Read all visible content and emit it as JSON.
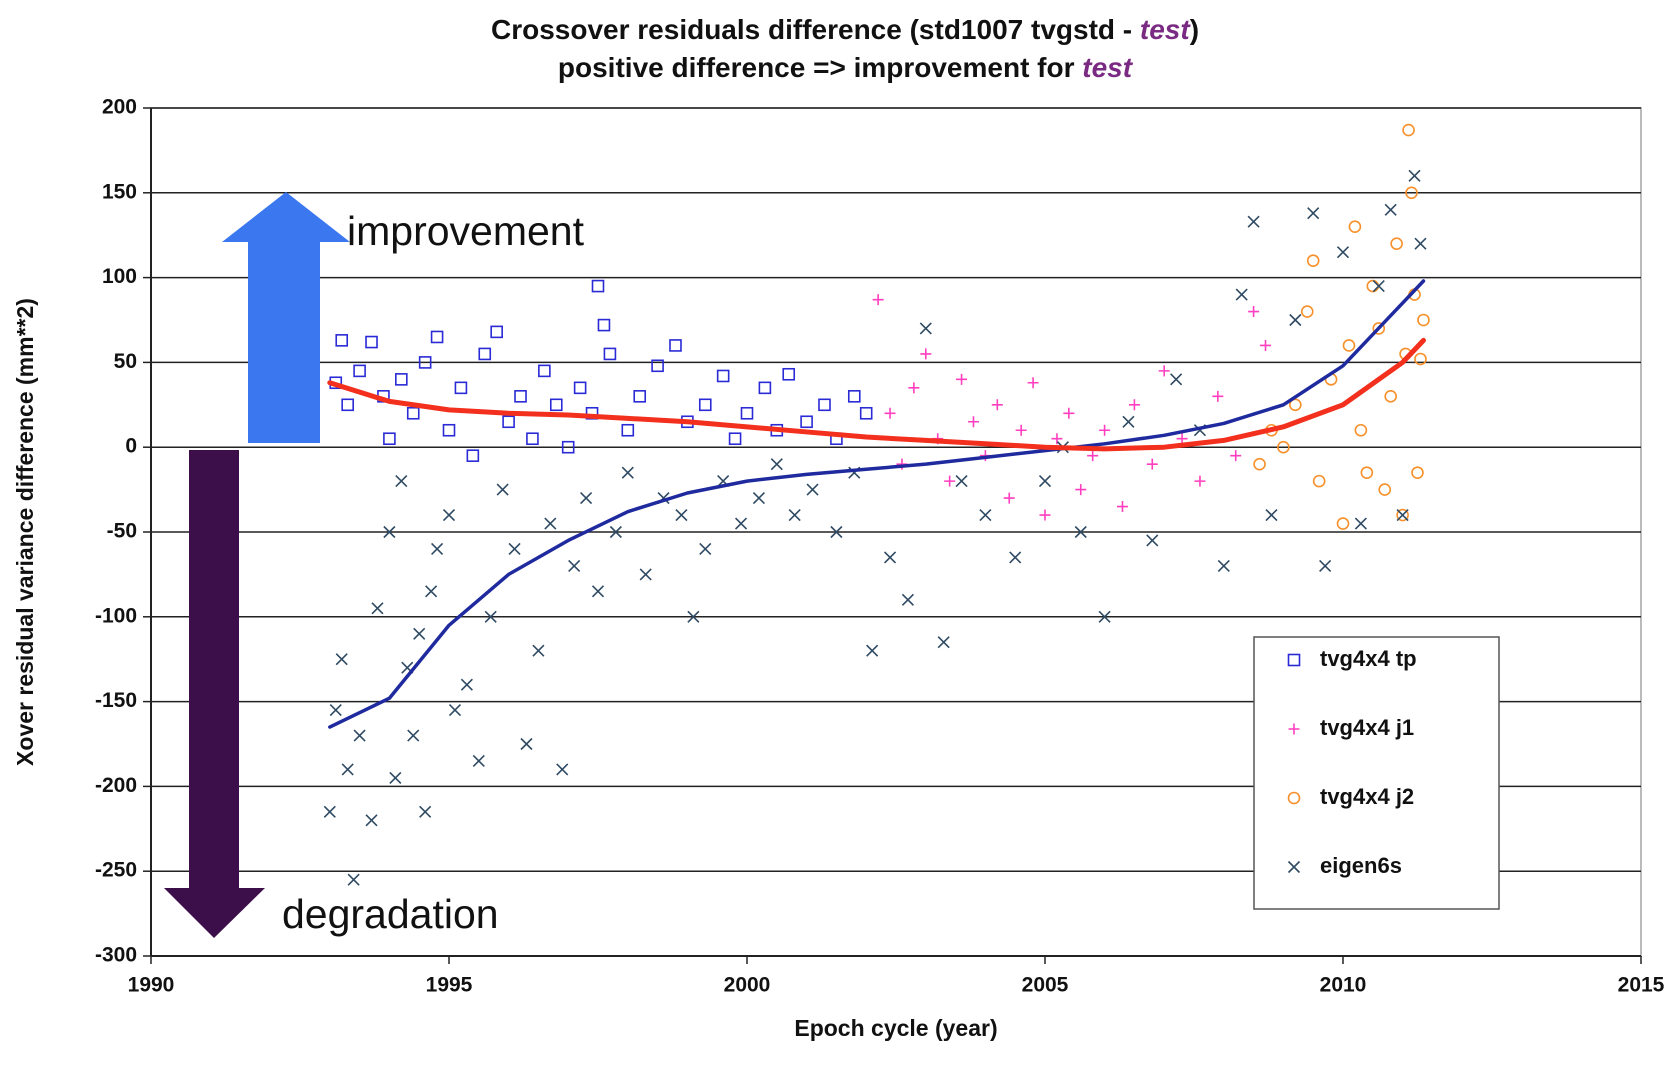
{
  "chart_data": {
    "type": "scatter",
    "title": "Crossover residuals difference (std1007 tvgstd - test)",
    "subtitle": "positive difference => improvement for test",
    "emphasis": "test",
    "emphasis_color": "#7a2a82",
    "x_label": "Epoch cycle (year)",
    "y_label": "Xover residual variance difference (mm**2)",
    "xlim": [
      1990,
      2015
    ],
    "xticks": [
      1990,
      1995,
      2000,
      2005,
      2010,
      2015
    ],
    "ylim": [
      -300,
      200
    ],
    "yticks": [
      -300,
      -250,
      -200,
      -150,
      -100,
      -50,
      0,
      50,
      100,
      150,
      200
    ],
    "grid": true,
    "legend": "lower right",
    "annotations": [
      "improvement",
      "degradation"
    ],
    "series": [
      {
        "name": "tvg4x4 tp",
        "color": "#2a2ad6",
        "marker": "square",
        "x": [
          1993.1,
          1993.2,
          1993.3,
          1993.5,
          1993.7,
          1993.9,
          1994.0,
          1994.2,
          1994.4,
          1994.6,
          1994.8,
          1995.0,
          1995.2,
          1995.4,
          1995.6,
          1995.8,
          1996.0,
          1996.2,
          1996.4,
          1996.6,
          1996.8,
          1997.0,
          1997.2,
          1997.4,
          1997.5,
          1997.6,
          1997.7,
          1998.0,
          1998.2,
          1998.5,
          1998.8,
          1999.0,
          1999.3,
          1999.6,
          1999.8,
          2000.0,
          2000.3,
          2000.5,
          2000.7,
          2001.0,
          2001.3,
          2001.5,
          2001.8,
          2002.0
        ],
        "values": [
          38,
          63,
          25,
          45,
          62,
          30,
          5,
          40,
          20,
          50,
          65,
          10,
          35,
          -5,
          55,
          68,
          15,
          30,
          5,
          45,
          25,
          0,
          35,
          20,
          95,
          72,
          55,
          10,
          30,
          48,
          60,
          15,
          25,
          42,
          5,
          20,
          35,
          10,
          43,
          15,
          25,
          5,
          30,
          20
        ]
      },
      {
        "name": "tvg4x4 j1",
        "color": "#ff3fbf",
        "marker": "plus",
        "x": [
          2002.2,
          2002.4,
          2002.6,
          2002.8,
          2003.0,
          2003.2,
          2003.4,
          2003.6,
          2003.8,
          2004.0,
          2004.2,
          2004.4,
          2004.6,
          2004.8,
          2005.0,
          2005.2,
          2005.4,
          2005.6,
          2005.8,
          2006.0,
          2006.3,
          2006.5,
          2006.8,
          2007.0,
          2007.3,
          2007.6,
          2007.9,
          2008.2,
          2008.5,
          2008.7
        ],
        "values": [
          87,
          20,
          -10,
          35,
          55,
          5,
          -20,
          40,
          15,
          -5,
          25,
          -30,
          10,
          38,
          -40,
          5,
          20,
          -25,
          -5,
          10,
          -35,
          25,
          -10,
          45,
          5,
          -20,
          30,
          -5,
          80,
          60
        ]
      },
      {
        "name": "tvg4x4 j2",
        "color": "#f7902a",
        "marker": "circle",
        "x": [
          2008.6,
          2008.8,
          2009.0,
          2009.2,
          2009.4,
          2009.5,
          2009.6,
          2009.8,
          2010.0,
          2010.1,
          2010.2,
          2010.3,
          2010.4,
          2010.5,
          2010.6,
          2010.7,
          2010.8,
          2010.9,
          2011.0,
          2011.05,
          2011.1,
          2011.15,
          2011.2,
          2011.25,
          2011.3,
          2011.35
        ],
        "values": [
          -10,
          10,
          0,
          25,
          80,
          110,
          -20,
          40,
          -45,
          60,
          130,
          10,
          -15,
          95,
          70,
          -25,
          30,
          120,
          -40,
          55,
          187,
          150,
          90,
          -15,
          52,
          75
        ]
      },
      {
        "name": "eigen6s",
        "color": "#2f4a63",
        "marker": "x",
        "x": [
          1993.0,
          1993.1,
          1993.2,
          1993.3,
          1993.4,
          1993.5,
          1993.7,
          1993.8,
          1994.0,
          1994.1,
          1994.2,
          1994.3,
          1994.4,
          1994.5,
          1994.6,
          1994.7,
          1994.8,
          1995.0,
          1995.1,
          1995.3,
          1995.5,
          1995.7,
          1995.9,
          1996.1,
          1996.3,
          1996.5,
          1996.7,
          1996.9,
          1997.1,
          1997.3,
          1997.5,
          1997.8,
          1998.0,
          1998.3,
          1998.6,
          1998.9,
          1999.1,
          1999.3,
          1999.6,
          1999.9,
          2000.2,
          2000.5,
          2000.8,
          2001.1,
          2001.5,
          2001.8,
          2002.1,
          2002.4,
          2002.7,
          2003.0,
          2003.3,
          2003.6,
          2004.0,
          2004.5,
          2005.0,
          2005.3,
          2005.6,
          2006.0,
          2006.4,
          2006.8,
          2007.2,
          2007.6,
          2008.0,
          2008.3,
          2008.5,
          2008.8,
          2009.2,
          2009.5,
          2009.7,
          2010.0,
          2010.3,
          2010.6,
          2010.8,
          2011.0,
          2011.2,
          2011.3
        ],
        "values": [
          -215,
          -155,
          -125,
          -190,
          -255,
          -170,
          -220,
          -95,
          -50,
          -195,
          -20,
          -130,
          -170,
          -110,
          -215,
          -85,
          -60,
          -40,
          -155,
          -140,
          -185,
          -100,
          -25,
          -60,
          -175,
          -120,
          -45,
          -190,
          -70,
          -30,
          -85,
          -50,
          -15,
          -75,
          -30,
          -40,
          -100,
          -60,
          -20,
          -45,
          -30,
          -10,
          -40,
          -25,
          -50,
          -15,
          -120,
          -65,
          -90,
          70,
          -115,
          -20,
          -40,
          -65,
          -20,
          0,
          -50,
          -100,
          15,
          -55,
          40,
          10,
          -70,
          90,
          133,
          -40,
          75,
          138,
          -70,
          115,
          -45,
          95,
          140,
          -40,
          160,
          120
        ]
      }
    ],
    "trend_lines": [
      {
        "color": "#1f2a9e",
        "x": [
          1993,
          1994,
          1995,
          1996,
          1997,
          1998,
          1999,
          2000,
          2001,
          2002,
          2003,
          2004,
          2005,
          2006,
          2007,
          2008,
          2009,
          2010,
          2011,
          2011.35
        ],
        "values": [
          -165,
          -148,
          -105,
          -75,
          -55,
          -38,
          -27,
          -20,
          -16,
          -13,
          -10,
          -6,
          -2,
          2,
          7,
          14,
          25,
          48,
          85,
          98
        ]
      },
      {
        "color": "#f2301d",
        "x": [
          1993,
          1994,
          1995,
          1996,
          1997,
          1998,
          1999,
          2000,
          2001,
          2002,
          2003,
          2004,
          2005,
          2006,
          2007,
          2008,
          2009,
          2010,
          2011,
          2011.35
        ],
        "values": [
          38,
          27,
          22,
          20,
          19,
          17,
          15,
          12,
          9,
          6,
          4,
          2,
          0,
          -1,
          0,
          4,
          12,
          25,
          50,
          63
        ]
      }
    ]
  }
}
